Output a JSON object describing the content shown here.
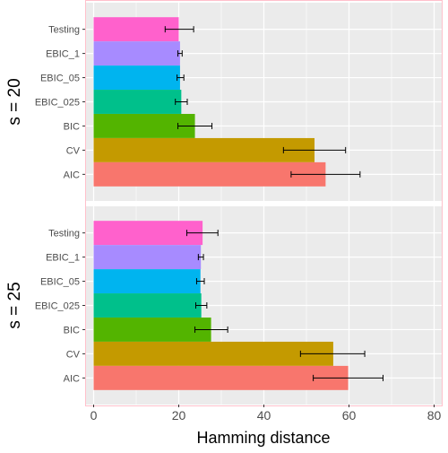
{
  "chart_data": {
    "type": "bar",
    "orientation": "horizontal",
    "xlabel": "Hamming distance",
    "xlim": [
      -2,
      82
    ],
    "xticks": [
      0,
      20,
      40,
      60,
      80
    ],
    "grid": true,
    "legend": "none",
    "categories": [
      "Testing",
      "EBIC_1",
      "EBIC_05",
      "EBIC_025",
      "BIC",
      "CV",
      "AIC"
    ],
    "colors": {
      "Testing": "#FF61CC",
      "EBIC_1": "#A78BFF",
      "EBIC_05": "#00B4EF",
      "EBIC_025": "#00C08B",
      "BIC": "#53B400",
      "CV": "#C49A00",
      "AIC": "#F8766D"
    },
    "panels": [
      {
        "label": "s = 20",
        "values": [
          20.0,
          20.3,
          20.3,
          20.6,
          23.8,
          51.9,
          54.5
        ],
        "errors": [
          [
            16.8,
            23.5
          ],
          [
            19.8,
            20.8
          ],
          [
            19.6,
            21.2
          ],
          [
            19.2,
            22.0
          ],
          [
            19.8,
            27.8
          ],
          [
            44.6,
            59.2
          ],
          [
            46.4,
            62.6
          ]
        ]
      },
      {
        "label": "s = 25",
        "values": [
          25.6,
          25.2,
          25.1,
          25.3,
          27.6,
          56.3,
          59.8
        ],
        "errors": [
          [
            21.9,
            29.2
          ],
          [
            24.6,
            25.8
          ],
          [
            24.2,
            26.0
          ],
          [
            24.0,
            26.6
          ],
          [
            23.8,
            31.5
          ],
          [
            48.6,
            63.7
          ],
          [
            51.6,
            68.0
          ]
        ]
      }
    ]
  }
}
